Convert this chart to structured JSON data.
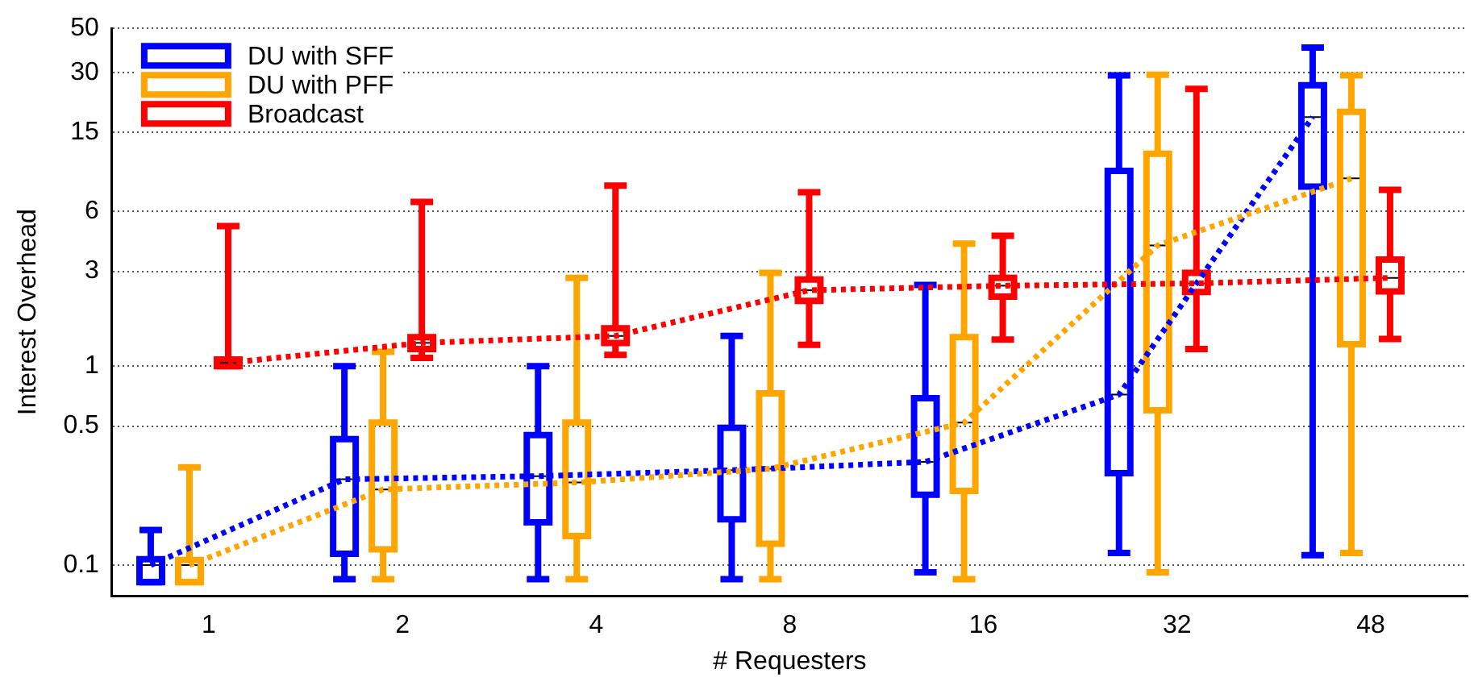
{
  "chart_data": {
    "type": "box",
    "xlabel": "# Requesters",
    "ylabel": "Interest Overhead",
    "categories": [
      "1",
      "2",
      "4",
      "8",
      "16",
      "32",
      "48"
    ],
    "log": "y",
    "ylim": [
      0.07,
      50
    ],
    "yticks": [
      0.1,
      0.5,
      1,
      3,
      6,
      15,
      30,
      50
    ],
    "grid": "y",
    "legend": "top left",
    "series": [
      {
        "name": "DU with SFF",
        "color": "#0000ff",
        "boxes": [
          {
            "low": 0.082,
            "q1": 0.082,
            "median": 0.1,
            "q3": 0.107,
            "high": 0.15
          },
          {
            "low": 0.085,
            "q1": 0.114,
            "median": 0.27,
            "q3": 0.43,
            "high": 1.0
          },
          {
            "low": 0.085,
            "q1": 0.164,
            "median": 0.28,
            "q3": 0.45,
            "high": 1.0
          },
          {
            "low": 0.085,
            "q1": 0.17,
            "median": 0.3,
            "q3": 0.49,
            "high": 1.42
          },
          {
            "low": 0.092,
            "q1": 0.226,
            "median": 0.33,
            "q3": 0.69,
            "high": 2.56
          },
          {
            "low": 0.115,
            "q1": 0.29,
            "median": 0.72,
            "q3": 9.6,
            "high": 29
          },
          {
            "low": 0.112,
            "q1": 8.0,
            "median": 17.9,
            "q3": 25.9,
            "high": 40
          }
        ]
      },
      {
        "name": "DU with PFF",
        "color": "#ffa500",
        "boxes": [
          {
            "low": 0.082,
            "q1": 0.082,
            "median": 0.1,
            "q3": 0.106,
            "high": 0.31
          },
          {
            "low": 0.085,
            "q1": 0.12,
            "median": 0.24,
            "q3": 0.52,
            "high": 1.18
          },
          {
            "low": 0.085,
            "q1": 0.14,
            "median": 0.26,
            "q3": 0.52,
            "high": 2.78
          },
          {
            "low": 0.085,
            "q1": 0.128,
            "median": 0.305,
            "q3": 0.73,
            "high": 2.95
          },
          {
            "low": 0.085,
            "q1": 0.236,
            "median": 0.52,
            "q3": 1.4,
            "high": 4.13
          },
          {
            "low": 0.092,
            "q1": 0.6,
            "median": 4.05,
            "q3": 11.7,
            "high": 29.2
          },
          {
            "low": 0.115,
            "q1": 1.29,
            "median": 8.8,
            "q3": 19,
            "high": 29
          }
        ]
      },
      {
        "name": "Broadcast",
        "color": "#ff0000",
        "boxes": [
          {
            "low": 1.0,
            "q1": 1.0,
            "median": 1.04,
            "q3": 1.08,
            "high": 5.06
          },
          {
            "low": 1.1,
            "q1": 1.22,
            "median": 1.31,
            "q3": 1.4,
            "high": 6.7
          },
          {
            "low": 1.14,
            "q1": 1.31,
            "median": 1.42,
            "q3": 1.55,
            "high": 8.1
          },
          {
            "low": 1.28,
            "q1": 2.13,
            "median": 2.41,
            "q3": 2.73,
            "high": 7.5
          },
          {
            "low": 1.36,
            "q1": 2.24,
            "median": 2.54,
            "q3": 2.78,
            "high": 4.53
          },
          {
            "low": 1.22,
            "q1": 2.36,
            "median": 2.61,
            "q3": 2.95,
            "high": 24.8
          },
          {
            "low": 1.37,
            "q1": 2.38,
            "median": 2.78,
            "q3": 3.44,
            "high": 7.7
          }
        ]
      },
      {
        "type": "line",
        "color": "#0000ff",
        "line_style": "dotted",
        "marker": "none",
        "values": [
          0.1,
          0.27,
          0.28,
          0.3,
          0.33,
          0.72,
          17.9
        ]
      },
      {
        "type": "line",
        "color": "#ffa500",
        "line_style": "dotted",
        "marker": "none",
        "values": [
          0.1,
          0.24,
          0.26,
          0.305,
          0.52,
          4.05,
          8.8
        ]
      },
      {
        "type": "line",
        "color": "#ff0000",
        "line_style": "dotted",
        "marker": "none",
        "values": [
          1.04,
          1.31,
          1.42,
          2.41,
          2.54,
          2.61,
          2.78
        ]
      }
    ]
  }
}
